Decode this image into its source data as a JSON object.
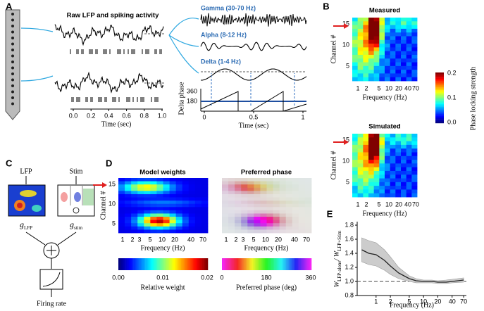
{
  "figure": {
    "A": {
      "label": "A",
      "title": "Raw LFP and spiking activity",
      "x_ticks": [
        "0.0",
        "0.2",
        "0.4",
        "0.6",
        "0.8",
        "1.0"
      ],
      "x_label": "Time (sec)",
      "bands": [
        "Gamma (30-70 Hz)",
        "Alpha (8-12 Hz)",
        "Delta (1-4 Hz)"
      ],
      "phase_label": "Delta phase",
      "phase_ticks": [
        "360",
        "180"
      ],
      "right_x_ticks": [
        "0",
        "0.5",
        "1"
      ],
      "right_x_label": "Time (sec)"
    },
    "B": {
      "label": "B",
      "titles": [
        "Measured",
        "Simulated"
      ],
      "y_label": "Channel #",
      "y_ticks": [
        "15",
        "10",
        "5"
      ],
      "x_ticks": [
        "1",
        "2",
        "5",
        "10",
        "20",
        "40",
        "70"
      ],
      "x_label": "Frequency (Hz)",
      "colorbar_ticks": [
        "0.2",
        "0.1",
        "0.0"
      ],
      "colorbar_label": "Phase locking strength"
    },
    "C": {
      "label": "C",
      "inputs": [
        "LFP",
        "Stim"
      ],
      "kernels": [
        {
          "symbol": "g",
          "sub": "LFP"
        },
        {
          "symbol": "g",
          "sub": "stim"
        }
      ],
      "output": "Firing rate"
    },
    "D": {
      "label": "D",
      "titles": [
        "Model weights",
        "Preferred phase"
      ],
      "y_label": "Channel #",
      "y_ticks": [
        "15",
        "10",
        "5"
      ],
      "x_ticks": [
        "1",
        "2",
        "3",
        "5",
        "10",
        "20",
        "40",
        "70"
      ],
      "x_label": "Frequency (Hz)",
      "colorbars": [
        {
          "ticks": [
            "0.00",
            "0.01",
            "0.02"
          ],
          "label": "Relative weight"
        },
        {
          "ticks": [
            "0",
            "180",
            "360"
          ],
          "label": "Preferred phase (deg)"
        }
      ]
    },
    "E": {
      "label": "E"
    }
  },
  "chart_data": {
    "type": "line",
    "x": [
      0.5,
      0.7,
      1,
      1.5,
      2,
      3,
      5,
      7,
      10,
      15,
      20,
      30,
      40,
      70
    ],
    "values": [
      1.45,
      1.4,
      1.38,
      1.3,
      1.22,
      1.12,
      1.04,
      1.01,
      1.0,
      1.0,
      0.99,
      0.99,
      1.0,
      1.02
    ],
    "band_upper": [
      1.62,
      1.58,
      1.55,
      1.45,
      1.35,
      1.2,
      1.08,
      1.04,
      1.02,
      1.02,
      1.01,
      1.02,
      1.03,
      1.05
    ],
    "band_lower": [
      1.28,
      1.24,
      1.22,
      1.16,
      1.1,
      1.04,
      1.0,
      0.98,
      0.98,
      0.98,
      0.97,
      0.97,
      0.98,
      0.99
    ],
    "color": "#222222",
    "band_color": "#cccccc",
    "xscale": "log",
    "xlim": [
      0.4,
      80
    ],
    "xticks": [
      1,
      2,
      5,
      10,
      20,
      40,
      70
    ],
    "ylim": [
      0.8,
      1.85
    ],
    "yticks": [
      {
        "value": 1.8,
        "label": "1.8"
      },
      1.6,
      1.4,
      1.2,
      {
        "value": 1,
        "label": "1.0"
      },
      0.8
    ],
    "reference_line": 1,
    "x_label": "Frequency (Hz)",
    "y_label_parts": [
      "W",
      "LFP-alone",
      "/ W",
      "LFP+Stim"
    ]
  }
}
